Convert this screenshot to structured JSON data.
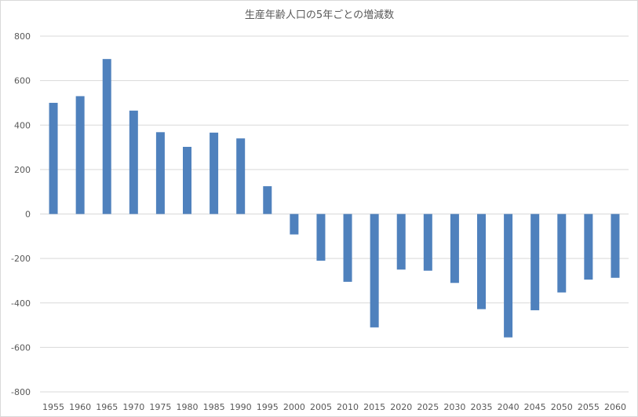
{
  "chart_data": {
    "type": "bar",
    "title": "生産年齢人口の5年ごとの増減数",
    "categories": [
      "1955",
      "1960",
      "1965",
      "1970",
      "1975",
      "1980",
      "1985",
      "1990",
      "1995",
      "2000",
      "2005",
      "2010",
      "2015",
      "2020",
      "2025",
      "2030",
      "2035",
      "2040",
      "2045",
      "2050",
      "2055",
      "2060"
    ],
    "values": [
      500,
      530,
      697,
      465,
      368,
      302,
      366,
      340,
      125,
      -92,
      -210,
      -305,
      -510,
      -250,
      -255,
      -310,
      -428,
      -555,
      -433,
      -353,
      -295,
      -287
    ],
    "ylim": [
      -800,
      800
    ],
    "yticks": [
      800,
      600,
      400,
      200,
      0,
      -200,
      -400,
      -600,
      -800
    ],
    "grid": true,
    "legend": "none",
    "bar_color": "#4f81bd",
    "grid_color": "#d9d9d9"
  }
}
